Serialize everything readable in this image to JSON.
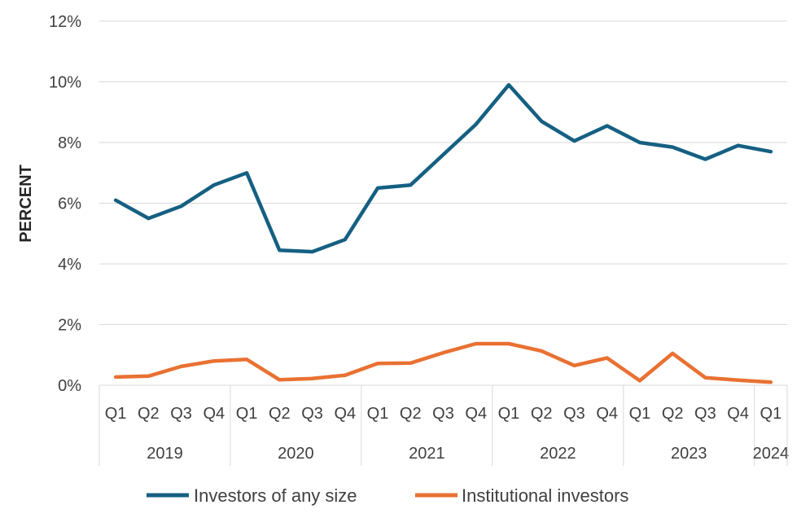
{
  "chart_data": {
    "type": "line",
    "title": "",
    "xlabel": "",
    "ylabel": "PERCENT",
    "ylim": [
      0,
      12
    ],
    "yticks": [
      0,
      2,
      4,
      6,
      8,
      10,
      12
    ],
    "ytick_suffix": "%",
    "grid": true,
    "legend_position": "bottom",
    "categories": [
      "Q1",
      "Q2",
      "Q3",
      "Q4",
      "Q1",
      "Q2",
      "Q3",
      "Q4",
      "Q1",
      "Q2",
      "Q3",
      "Q4",
      "Q1",
      "Q2",
      "Q3",
      "Q4",
      "Q1",
      "Q2",
      "Q3",
      "Q4",
      "Q1"
    ],
    "years": [
      {
        "label": "2019",
        "count": 4
      },
      {
        "label": "2020",
        "count": 4
      },
      {
        "label": "2021",
        "count": 4
      },
      {
        "label": "2022",
        "count": 4
      },
      {
        "label": "2023",
        "count": 4
      },
      {
        "label": "2024",
        "count": 1
      }
    ],
    "series": [
      {
        "name": "Investors of any size",
        "color": "#156082",
        "values": [
          6.1,
          5.5,
          5.9,
          6.6,
          7.0,
          4.45,
          4.4,
          4.8,
          6.5,
          6.6,
          7.6,
          8.6,
          9.9,
          8.7,
          8.05,
          8.55,
          8.0,
          7.85,
          7.45,
          7.9,
          7.7
        ]
      },
      {
        "name": "Institutional investors",
        "color": "#E97132",
        "values": [
          0.27,
          0.3,
          0.62,
          0.8,
          0.85,
          0.18,
          0.22,
          0.33,
          0.72,
          0.73,
          1.07,
          1.37,
          1.37,
          1.13,
          0.65,
          0.9,
          0.15,
          1.05,
          0.25,
          0.17,
          0.1
        ]
      }
    ]
  }
}
